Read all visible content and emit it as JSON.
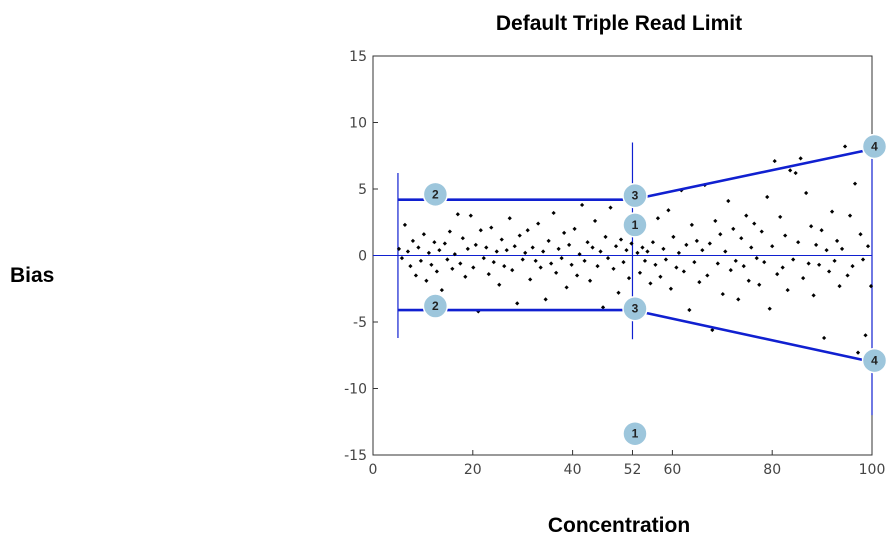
{
  "chart_data": {
    "type": "scatter",
    "title": "Default Triple Read Limit",
    "xlabel": "Concentration",
    "ylabel": "Bias",
    "xlim": [
      0,
      100
    ],
    "ylim": [
      -15,
      15
    ],
    "grid": false,
    "x_ticks": [
      0,
      20,
      40,
      52,
      60,
      80,
      100
    ],
    "y_ticks": [
      15,
      10,
      5,
      0,
      -5,
      -10,
      -15
    ],
    "colors": {
      "limit": "#1020d0",
      "points": "#000000",
      "callout": "#9dc6dc",
      "callout_edge": "#ffffff"
    },
    "limit_lines": [
      {
        "x": [
          5,
          52
        ],
        "y": [
          4.2,
          4.2
        ]
      },
      {
        "x": [
          5,
          52
        ],
        "y": [
          -4.1,
          -4.1
        ]
      },
      {
        "x": [
          52,
          100
        ],
        "y": [
          4.2,
          8.0
        ]
      },
      {
        "x": [
          52,
          100
        ],
        "y": [
          -4.1,
          -8.0
        ]
      }
    ],
    "reference_lines": [
      {
        "orientation": "horizontal",
        "y": 0,
        "x": [
          0,
          100
        ]
      },
      {
        "orientation": "vertical",
        "x": 5,
        "y": [
          -6.2,
          6.2
        ]
      },
      {
        "orientation": "vertical",
        "x": 52,
        "y": [
          -6.3,
          8.5
        ]
      },
      {
        "orientation": "vertical",
        "x": 100,
        "y": [
          -12,
          9
        ]
      }
    ],
    "callouts": [
      {
        "label": "1",
        "x": 52.5,
        "y": 2.3
      },
      {
        "label": "1",
        "x": 52.5,
        "y": -13.4
      },
      {
        "label": "2",
        "x": 12.5,
        "y": 4.6
      },
      {
        "label": "2",
        "x": 12.5,
        "y": -3.8
      },
      {
        "label": "3",
        "x": 52.5,
        "y": 4.5
      },
      {
        "label": "3",
        "x": 52.5,
        "y": -4.0
      },
      {
        "label": "4",
        "x": 100.5,
        "y": 8.2
      },
      {
        "label": "4",
        "x": 100.5,
        "y": -7.9
      }
    ],
    "points": [
      [
        5.2,
        0.5
      ],
      [
        5.8,
        -0.2
      ],
      [
        6.4,
        2.3
      ],
      [
        7.0,
        0.3
      ],
      [
        7.5,
        -0.8
      ],
      [
        8.0,
        1.1
      ],
      [
        8.6,
        -1.5
      ],
      [
        9.1,
        0.6
      ],
      [
        9.6,
        -0.4
      ],
      [
        10.2,
        1.6
      ],
      [
        10.7,
        -1.9
      ],
      [
        11.2,
        0.2
      ],
      [
        11.7,
        -0.7
      ],
      [
        12.3,
        1.0
      ],
      [
        12.8,
        -1.2
      ],
      [
        13.3,
        0.4
      ],
      [
        13.8,
        -2.6
      ],
      [
        14.4,
        0.9
      ],
      [
        14.9,
        -0.3
      ],
      [
        15.4,
        1.8
      ],
      [
        15.9,
        -1.0
      ],
      [
        16.4,
        0.1
      ],
      [
        17.0,
        3.1
      ],
      [
        17.5,
        -0.6
      ],
      [
        18.0,
        1.3
      ],
      [
        18.5,
        -1.6
      ],
      [
        19.0,
        0.5
      ],
      [
        19.6,
        3.0
      ],
      [
        20.1,
        -0.9
      ],
      [
        20.6,
        0.8
      ],
      [
        21.1,
        -4.2
      ],
      [
        21.6,
        1.9
      ],
      [
        22.2,
        -0.2
      ],
      [
        22.7,
        0.6
      ],
      [
        23.2,
        -1.4
      ],
      [
        23.7,
        2.1
      ],
      [
        24.2,
        -0.5
      ],
      [
        24.8,
        0.3
      ],
      [
        25.3,
        -2.2
      ],
      [
        25.8,
        1.2
      ],
      [
        26.3,
        -0.8
      ],
      [
        26.8,
        0.4
      ],
      [
        27.4,
        2.8
      ],
      [
        27.9,
        -1.1
      ],
      [
        28.4,
        0.7
      ],
      [
        28.9,
        -3.6
      ],
      [
        29.4,
        1.5
      ],
      [
        30.0,
        -0.3
      ],
      [
        30.5,
        0.2
      ],
      [
        31.0,
        1.9
      ],
      [
        31.5,
        -1.8
      ],
      [
        32.0,
        0.6
      ],
      [
        32.6,
        -0.4
      ],
      [
        33.1,
        2.4
      ],
      [
        33.6,
        -0.9
      ],
      [
        34.1,
        0.3
      ],
      [
        34.6,
        -3.3
      ],
      [
        35.2,
        1.1
      ],
      [
        35.7,
        -0.6
      ],
      [
        36.2,
        3.2
      ],
      [
        36.7,
        -1.3
      ],
      [
        37.2,
        0.5
      ],
      [
        37.8,
        -0.2
      ],
      [
        38.3,
        1.7
      ],
      [
        38.8,
        -2.4
      ],
      [
        39.3,
        0.8
      ],
      [
        39.8,
        -0.7
      ],
      [
        40.4,
        2.0
      ],
      [
        40.9,
        -1.5
      ],
      [
        41.4,
        0.1
      ],
      [
        41.9,
        3.8
      ],
      [
        42.4,
        -0.4
      ],
      [
        43.0,
        1.0
      ],
      [
        43.5,
        -1.9
      ],
      [
        44.0,
        0.6
      ],
      [
        44.5,
        2.6
      ],
      [
        45.0,
        -0.8
      ],
      [
        45.6,
        0.3
      ],
      [
        46.1,
        -3.9
      ],
      [
        46.6,
        1.4
      ],
      [
        47.1,
        -0.2
      ],
      [
        47.6,
        3.6
      ],
      [
        48.2,
        -1.0
      ],
      [
        48.7,
        0.7
      ],
      [
        49.2,
        -2.8
      ],
      [
        49.7,
        1.2
      ],
      [
        50.2,
        -0.5
      ],
      [
        50.8,
        0.4
      ],
      [
        51.3,
        -1.7
      ],
      [
        51.8,
        0.9
      ],
      [
        53.0,
        0.2
      ],
      [
        53.5,
        -1.3
      ],
      [
        54.0,
        0.6
      ],
      [
        54.5,
        -0.4
      ],
      [
        55.0,
        0.3
      ],
      [
        55.6,
        -2.1
      ],
      [
        56.1,
        1.0
      ],
      [
        56.6,
        -0.7
      ],
      [
        57.1,
        2.8
      ],
      [
        57.6,
        -1.6
      ],
      [
        58.2,
        0.5
      ],
      [
        58.7,
        -0.3
      ],
      [
        59.2,
        3.4
      ],
      [
        59.7,
        -2.5
      ],
      [
        60.2,
        1.4
      ],
      [
        60.8,
        -0.9
      ],
      [
        61.3,
        0.2
      ],
      [
        61.8,
        4.9
      ],
      [
        62.3,
        -1.2
      ],
      [
        62.8,
        0.8
      ],
      [
        63.4,
        -4.1
      ],
      [
        63.9,
        2.3
      ],
      [
        64.4,
        -0.5
      ],
      [
        64.9,
        1.1
      ],
      [
        65.4,
        -2.0
      ],
      [
        66.0,
        0.4
      ],
      [
        66.5,
        5.3
      ],
      [
        67.0,
        -1.5
      ],
      [
        67.5,
        0.9
      ],
      [
        68.0,
        -5.6
      ],
      [
        68.6,
        2.6
      ],
      [
        69.1,
        -0.6
      ],
      [
        69.6,
        1.6
      ],
      [
        70.1,
        -2.9
      ],
      [
        70.6,
        0.3
      ],
      [
        71.2,
        4.1
      ],
      [
        71.7,
        -1.1
      ],
      [
        72.2,
        2.0
      ],
      [
        72.7,
        -0.4
      ],
      [
        73.2,
        -3.3
      ],
      [
        73.8,
        1.3
      ],
      [
        74.3,
        -0.8
      ],
      [
        74.8,
        3.0
      ],
      [
        75.3,
        -1.9
      ],
      [
        75.8,
        0.6
      ],
      [
        76.4,
        2.4
      ],
      [
        76.9,
        -0.2
      ],
      [
        77.4,
        -2.2
      ],
      [
        77.9,
        1.8
      ],
      [
        78.4,
        -0.5
      ],
      [
        79.0,
        4.4
      ],
      [
        79.5,
        -4.0
      ],
      [
        80.0,
        0.7
      ],
      [
        80.5,
        7.1
      ],
      [
        81.0,
        -1.4
      ],
      [
        81.6,
        2.9
      ],
      [
        82.1,
        -0.9
      ],
      [
        82.6,
        1.5
      ],
      [
        83.1,
        -2.6
      ],
      [
        83.6,
        6.4
      ],
      [
        84.2,
        -0.3
      ],
      [
        84.7,
        6.2
      ],
      [
        85.2,
        1.0
      ],
      [
        85.7,
        7.3
      ],
      [
        86.2,
        -1.7
      ],
      [
        86.8,
        4.7
      ],
      [
        87.3,
        -0.6
      ],
      [
        87.8,
        2.2
      ],
      [
        88.3,
        -3.0
      ],
      [
        88.8,
        0.8
      ],
      [
        89.4,
        -0.7
      ],
      [
        89.9,
        1.9
      ],
      [
        90.4,
        -6.2
      ],
      [
        90.9,
        0.4
      ],
      [
        91.4,
        -1.2
      ],
      [
        92.0,
        3.3
      ],
      [
        92.5,
        -0.4
      ],
      [
        93.0,
        1.1
      ],
      [
        93.5,
        -2.3
      ],
      [
        94.0,
        0.5
      ],
      [
        94.6,
        8.2
      ],
      [
        95.1,
        -1.5
      ],
      [
        95.6,
        3.0
      ],
      [
        96.1,
        -0.8
      ],
      [
        96.6,
        5.4
      ],
      [
        97.2,
        -7.3
      ],
      [
        97.7,
        1.6
      ],
      [
        98.2,
        -0.3
      ],
      [
        98.7,
        -6.0
      ],
      [
        99.2,
        0.7
      ],
      [
        99.8,
        -2.3
      ]
    ]
  }
}
